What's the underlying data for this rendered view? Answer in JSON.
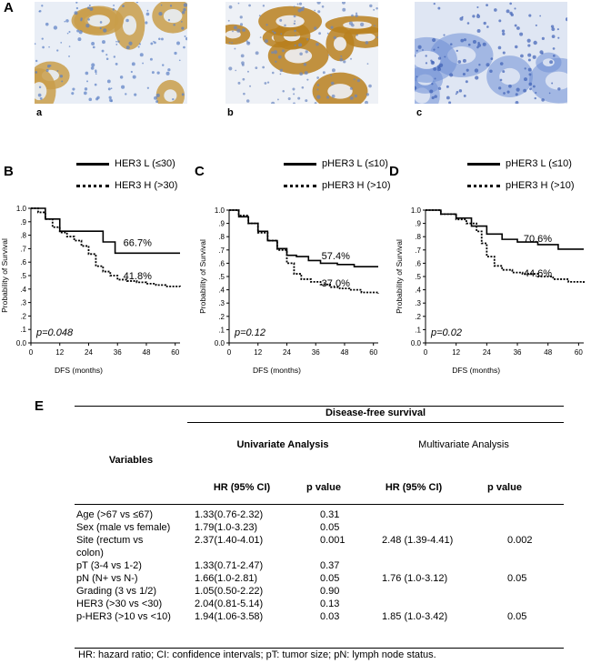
{
  "panels": {
    "A": "A",
    "B": "B",
    "C": "C",
    "D": "D",
    "E": "E"
  },
  "micrographs": [
    {
      "label": "a",
      "stain": "moderate",
      "colors": [
        "#c99d4a",
        "#e9eef6",
        "#5a7fc4"
      ]
    },
    {
      "label": "b",
      "stain": "strong",
      "colors": [
        "#b9801f",
        "#eef1f6",
        "#6a86c0"
      ]
    },
    {
      "label": "c",
      "stain": "negative",
      "colors": [
        "#6f8fd6",
        "#dfe6f3",
        "#3d5fb5"
      ]
    }
  ],
  "chart_data": [
    {
      "type": "line",
      "panel": "B",
      "xlabel": "DFS (months)",
      "ylabel": "Probability of Survival",
      "xlim": [
        0,
        60
      ],
      "ylim": [
        0,
        1.0
      ],
      "xticks": [
        "0",
        "12",
        "24",
        "36",
        "48",
        "60"
      ],
      "yticks": [
        "0.0",
        ".1",
        ".2",
        ".3",
        ".4",
        ".5",
        ".6",
        ".7",
        ".8",
        ".9",
        "1.0"
      ],
      "annotation": "p=0.048",
      "series": [
        {
          "name": "HER3 L (≤30)",
          "style": "solid",
          "end_label": "66.7%",
          "x": [
            0,
            6,
            12,
            24,
            30,
            35,
            62
          ],
          "y": [
            1.0,
            0.92,
            0.83,
            0.83,
            0.75,
            0.667,
            0.667
          ]
        },
        {
          "name": "HER3 H (>30)",
          "style": "dotted",
          "end_label": "41.8%",
          "x": [
            0,
            3,
            6,
            9,
            12,
            15,
            18,
            21,
            24,
            27,
            30,
            33,
            36,
            40,
            44,
            48,
            52,
            56,
            62
          ],
          "y": [
            1.0,
            0.97,
            0.92,
            0.86,
            0.82,
            0.79,
            0.76,
            0.72,
            0.66,
            0.57,
            0.53,
            0.5,
            0.47,
            0.46,
            0.45,
            0.44,
            0.43,
            0.42,
            0.418
          ]
        }
      ]
    },
    {
      "type": "line",
      "panel": "C",
      "xlabel": "DFS (months)",
      "ylabel": "Probability of Survival",
      "xlim": [
        0,
        60
      ],
      "ylim": [
        0,
        1.0
      ],
      "xticks": [
        "0",
        "12",
        "24",
        "36",
        "48",
        "60"
      ],
      "yticks": [
        "0.0",
        ".1",
        ".2",
        ".3",
        ".4",
        ".5",
        ".6",
        ".7",
        ".8",
        ".9",
        "1.0"
      ],
      "annotation": "p=0.12",
      "series": [
        {
          "name": "pHER3 L (≤10)",
          "style": "solid",
          "end_label": "57.4%",
          "x": [
            0,
            4,
            8,
            12,
            16,
            20,
            24,
            28,
            33,
            38,
            45,
            52,
            62
          ],
          "y": [
            1.0,
            0.95,
            0.9,
            0.84,
            0.77,
            0.71,
            0.66,
            0.65,
            0.62,
            0.6,
            0.59,
            0.574,
            0.574
          ]
        },
        {
          "name": "pHER3 H (>10)",
          "style": "dotted",
          "end_label": "37.0%",
          "x": [
            0,
            4,
            8,
            12,
            16,
            20,
            24,
            27,
            30,
            34,
            38,
            42,
            46,
            50,
            55,
            62
          ],
          "y": [
            1.0,
            0.96,
            0.9,
            0.83,
            0.77,
            0.7,
            0.6,
            0.52,
            0.48,
            0.46,
            0.44,
            0.42,
            0.41,
            0.4,
            0.38,
            0.37
          ]
        }
      ]
    },
    {
      "type": "line",
      "panel": "D",
      "xlabel": "DFS (months)",
      "ylabel": "Probability of Survival",
      "xlim": [
        0,
        60
      ],
      "ylim": [
        0,
        1.0
      ],
      "xticks": [
        "0",
        "12",
        "24",
        "36",
        "48",
        "60"
      ],
      "yticks": [
        "0.0",
        ".1",
        ".2",
        ".3",
        ".4",
        ".5",
        ".6",
        ".7",
        ".8",
        ".9",
        "1.0"
      ],
      "annotation": "p=0.02",
      "series": [
        {
          "name": "pHER3 L (≤10)",
          "style": "solid",
          "end_label": "70.6%",
          "x": [
            0,
            6,
            12,
            18,
            24,
            30,
            36,
            44,
            52,
            62
          ],
          "y": [
            1.0,
            0.97,
            0.94,
            0.88,
            0.82,
            0.78,
            0.76,
            0.74,
            0.706,
            0.706
          ]
        },
        {
          "name": "pHER3 H (>10)",
          "style": "dotted",
          "end_label": "44.6%",
          "x": [
            0,
            6,
            12,
            16,
            20,
            22,
            24,
            27,
            30,
            34,
            38,
            44,
            50,
            56,
            62
          ],
          "y": [
            1.0,
            0.97,
            0.93,
            0.9,
            0.84,
            0.75,
            0.65,
            0.58,
            0.55,
            0.53,
            0.52,
            0.5,
            0.48,
            0.46,
            0.446
          ]
        }
      ]
    }
  ],
  "table": {
    "disease_free_survival": "Disease-free survival",
    "variables_header": "Variables",
    "univariate": "Univariate Analysis",
    "multivariate": "Multivariate Analysis",
    "hr_header": "HR (95% CI)",
    "p_header": "p value",
    "rows": [
      {
        "var": "Age (>67 vs ≤67)",
        "uhr": "1.33(0.76-2.32)",
        "up": "0.31",
        "mhr": "",
        "mp": ""
      },
      {
        "var": "Sex (male vs female)",
        "uhr": "1.79(1.0-3.23)",
        "up": "0.05",
        "mhr": "",
        "mp": ""
      },
      {
        "var": "Site (rectum vs",
        "uhr": "2.37(1.40-4.01)",
        "up": "0.001",
        "mhr": "2.48 (1.39-4.41)",
        "mp": "0.002"
      },
      {
        "var": "colon)",
        "uhr": "",
        "up": "",
        "mhr": "",
        "mp": ""
      },
      {
        "var": "pT (3-4 vs 1-2)",
        "uhr": "1.33(0.71-2.47)",
        "up": "0.37",
        "mhr": "",
        "mp": ""
      },
      {
        "var": "pN (N+ vs N-)",
        "uhr": "1.66(1.0-2.81)",
        "up": "0.05",
        "mhr": "1.76 (1.0-3.12)",
        "mp": "0.05"
      },
      {
        "var": "Grading (3 vs 1/2)",
        "uhr": "1.05(0.50-2.22)",
        "up": "0.90",
        "mhr": "",
        "mp": ""
      },
      {
        "var": "HER3 (>30 vs <30)",
        "uhr": "2.04(0.81-5.14)",
        "up": "0.13",
        "mhr": "",
        "mp": ""
      },
      {
        "var": "p-HER3 (>10 vs <10)",
        "uhr": "1.94(1.06-3.58)",
        "up": "0.03",
        "mhr": "1.85 (1.0-3.42)",
        "mp": "0.05"
      }
    ],
    "footnote": "HR: hazard ratio; CI: confidence intervals; pT: tumor size; pN: lymph node status."
  }
}
